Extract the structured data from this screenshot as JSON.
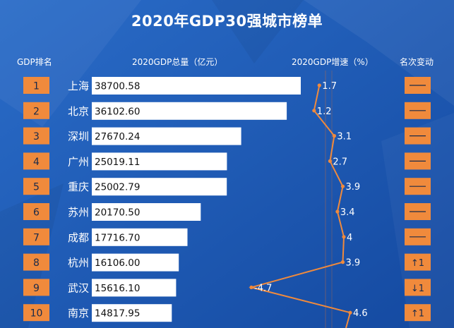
{
  "title": "2020年GDP30强城市榜单",
  "headers": {
    "rank": "GDP排名",
    "gdp": "2020GDP总量（亿元）",
    "growth": "2020GDP增速（%）",
    "change": "名次变动"
  },
  "colors": {
    "background": "#1c56b0",
    "rank_box": "#f08a3c",
    "bar": "#ffffff",
    "growth_line": "#f08a3c",
    "text": "#ffffff"
  },
  "chart_data": {
    "type": "table",
    "rows": [
      {
        "rank": "1",
        "city": "上海",
        "gdp": "38700.58",
        "growth": "1.7",
        "change": "——"
      },
      {
        "rank": "2",
        "city": "北京",
        "gdp": "36102.60",
        "growth": "1.2",
        "change": "——"
      },
      {
        "rank": "3",
        "city": "深圳",
        "gdp": "27670.24",
        "growth": "3.1",
        "change": "——"
      },
      {
        "rank": "4",
        "city": "广州",
        "gdp": "25019.11",
        "growth": "2.7",
        "change": "——"
      },
      {
        "rank": "5",
        "city": "重庆",
        "gdp": "25002.79",
        "growth": "3.9",
        "change": "——"
      },
      {
        "rank": "6",
        "city": "苏州",
        "gdp": "20170.50",
        "growth": "3.4",
        "change": "——"
      },
      {
        "rank": "7",
        "city": "成都",
        "gdp": "17716.70",
        "growth": "4",
        "change": "——"
      },
      {
        "rank": "8",
        "city": "杭州",
        "gdp": "16106.00",
        "growth": "3.9",
        "change": "↑1"
      },
      {
        "rank": "9",
        "city": "武汉",
        "gdp": "15616.10",
        "growth": "-4.7",
        "change": "↓1"
      },
      {
        "rank": "10",
        "city": "南京",
        "gdp": "14817.95",
        "growth": "4.6",
        "change": "↑1"
      }
    ],
    "gdp_unit": "亿元",
    "growth_unit": "%",
    "growth_range": [
      -4.7,
      4.6
    ]
  }
}
